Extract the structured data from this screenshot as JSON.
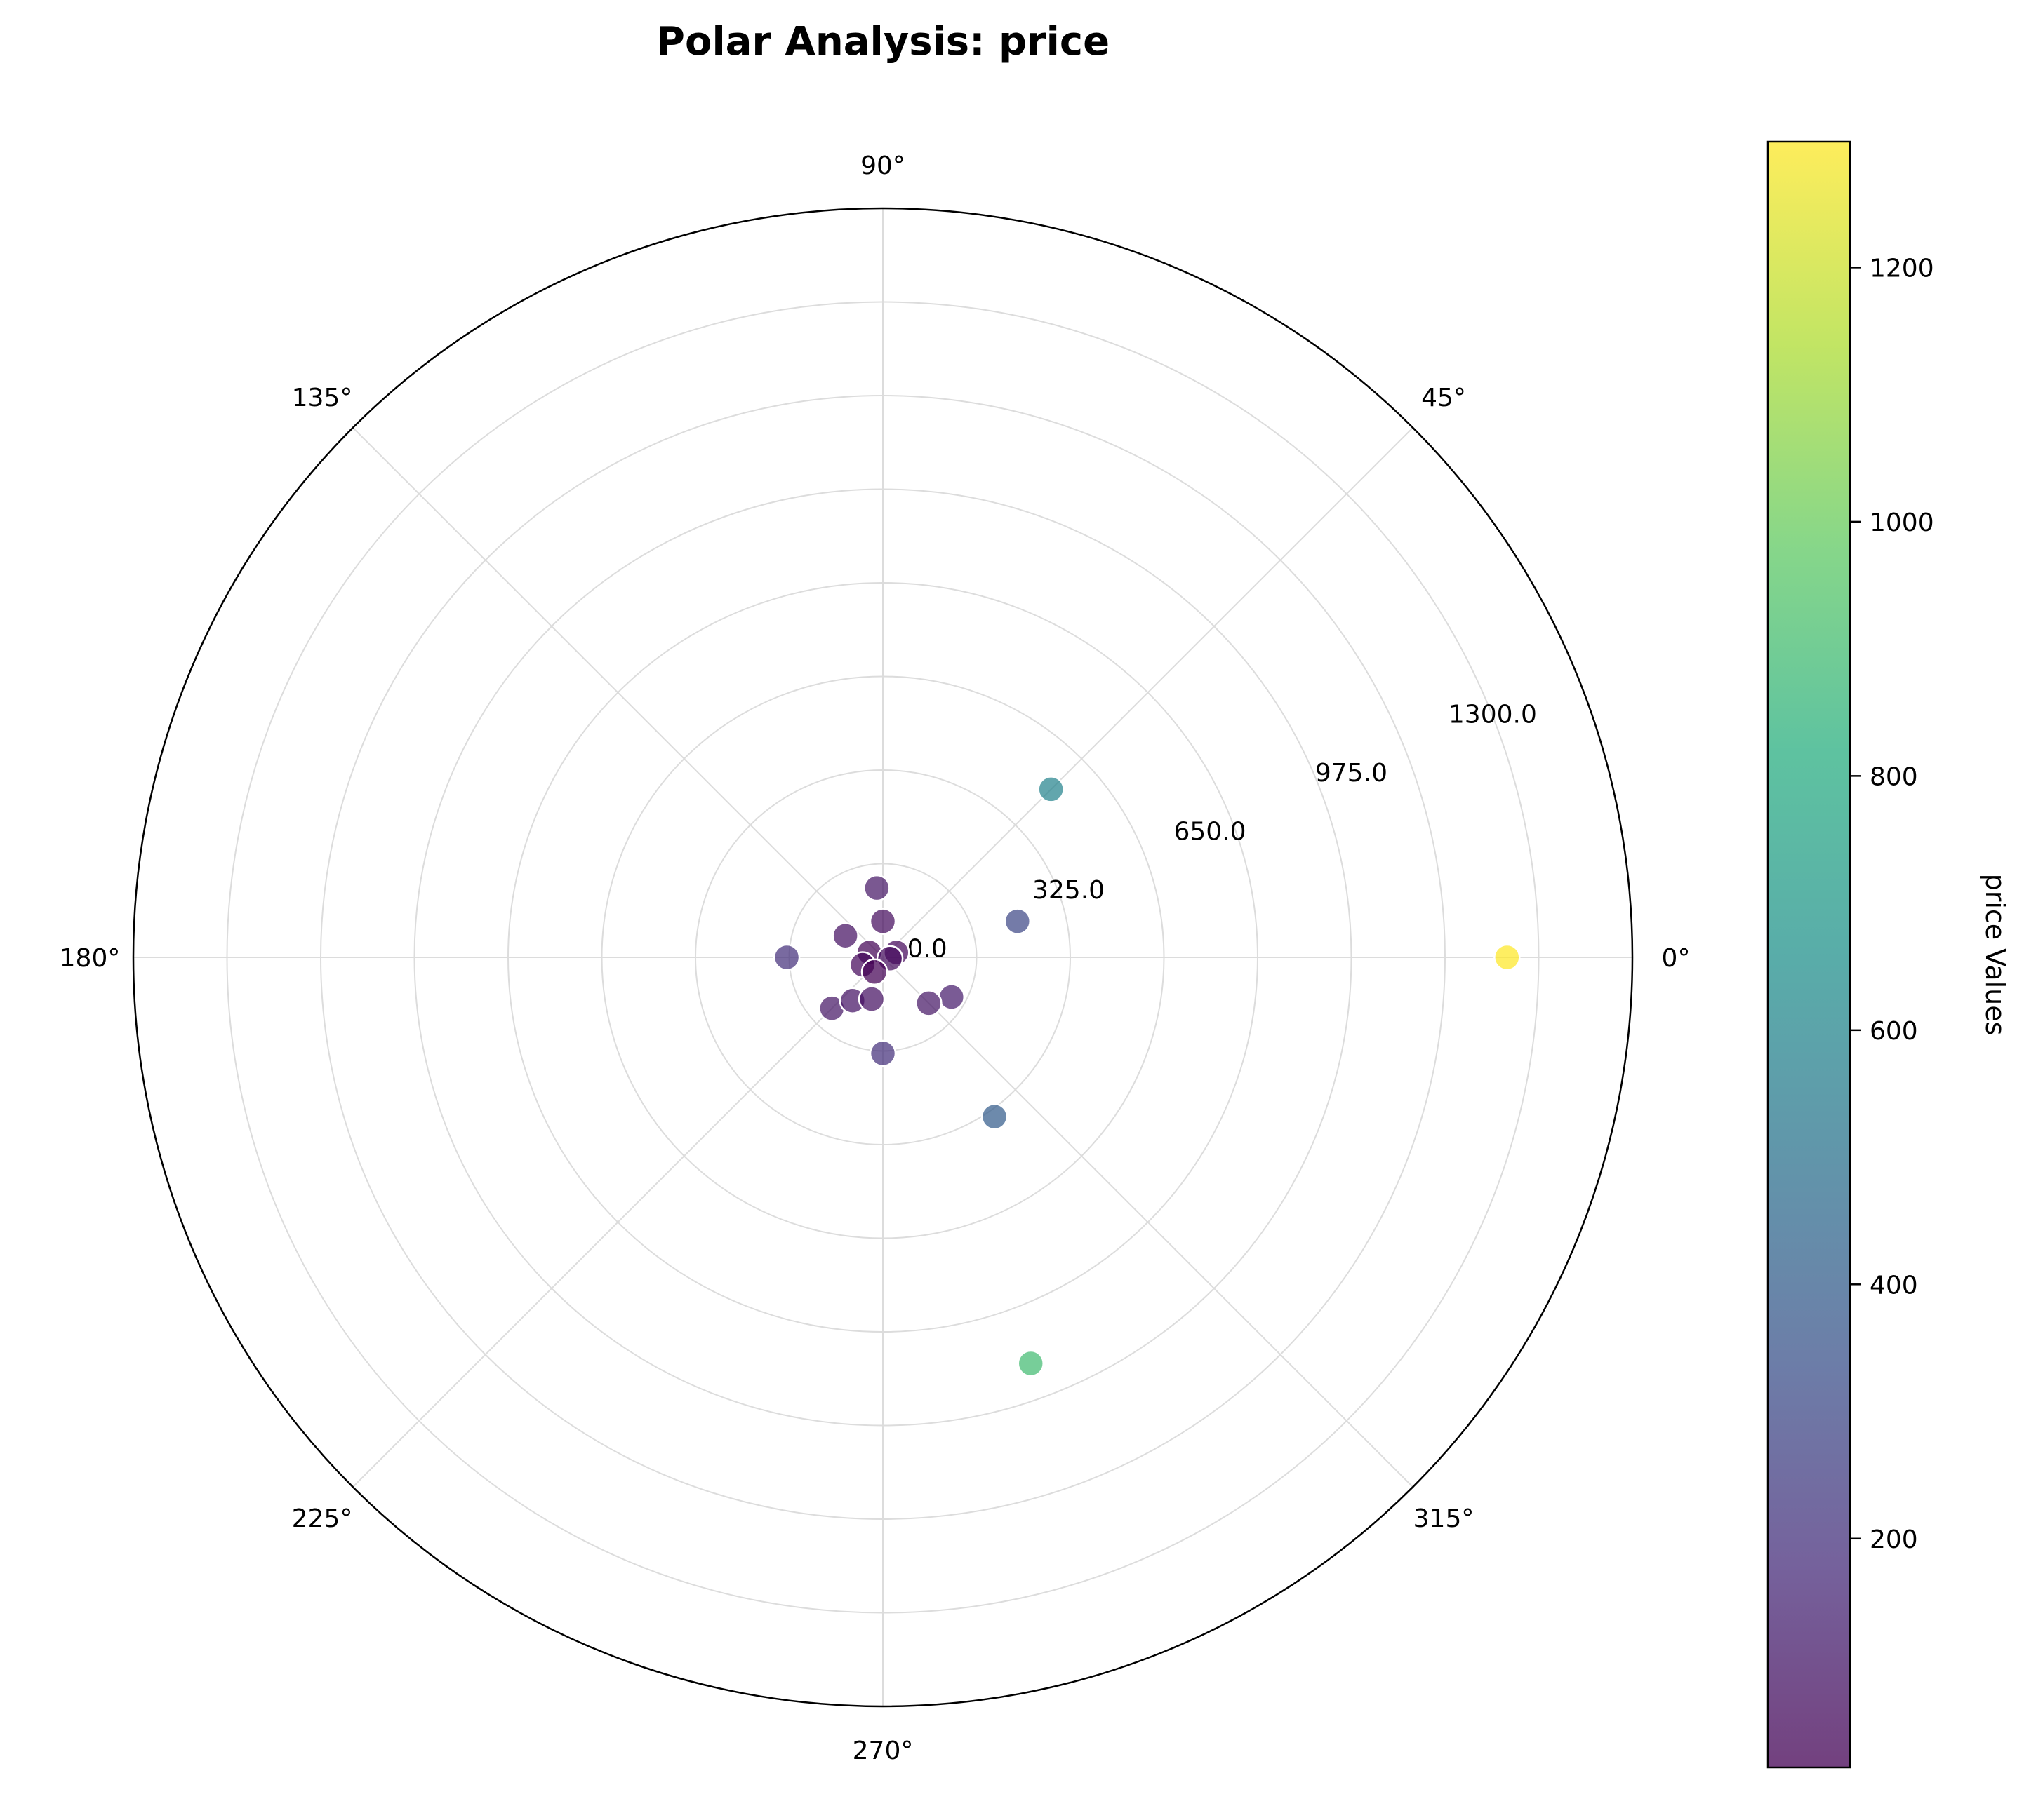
{
  "chart_data": {
    "type": "scatter",
    "subtype": "polar",
    "title": "Polar Analysis: price",
    "angular_ticks": [
      "0°",
      "45°",
      "90°",
      "135°",
      "180°",
      "225°",
      "270°",
      "315°"
    ],
    "angular_tick_degrees": [
      0,
      45,
      90,
      135,
      180,
      225,
      270,
      315
    ],
    "radial_ticks": [
      "0.0",
      "325.0",
      "650.0",
      "975.0",
      "1300.0"
    ],
    "radial_tick_values": [
      0,
      325,
      650,
      975,
      1300
    ],
    "rlim": [
      0,
      1300
    ],
    "grid": true,
    "colormap": "viridis",
    "colorbar": {
      "label": "price Values",
      "range": [
        20,
        1299
      ],
      "ticks": [
        "200",
        "400",
        "600",
        "800",
        "1000",
        "1200"
      ],
      "tick_values": [
        200,
        400,
        600,
        800,
        1000,
        1200
      ]
    },
    "points": [
      {
        "theta_deg": 0,
        "r": 1299,
        "value": 1299
      },
      {
        "theta_deg": 45,
        "r": 495,
        "value": 600
      },
      {
        "theta_deg": 15,
        "r": 290,
        "value": 300
      },
      {
        "theta_deg": 290,
        "r": 900,
        "value": 900
      },
      {
        "theta_deg": 305,
        "r": 405,
        "value": 400
      },
      {
        "theta_deg": 270,
        "r": 200,
        "value": 200
      },
      {
        "theta_deg": 180,
        "r": 200,
        "value": 200
      },
      {
        "theta_deg": 330,
        "r": 165,
        "value": 120
      },
      {
        "theta_deg": 315,
        "r": 135,
        "value": 100
      },
      {
        "theta_deg": 95,
        "r": 145,
        "value": 100
      },
      {
        "theta_deg": 90,
        "r": 75,
        "value": 60
      },
      {
        "theta_deg": 150,
        "r": 90,
        "value": 80
      },
      {
        "theta_deg": 225,
        "r": 150,
        "value": 100
      },
      {
        "theta_deg": 235,
        "r": 110,
        "value": 90
      },
      {
        "theta_deg": 255,
        "r": 90,
        "value": 80
      },
      {
        "theta_deg": 160,
        "r": 30,
        "value": 30
      },
      {
        "theta_deg": 20,
        "r": 30,
        "value": 50
      },
      {
        "theta_deg": 350,
        "r": 15,
        "value": 60
      },
      {
        "theta_deg": 200,
        "r": 45,
        "value": 50
      },
      {
        "theta_deg": 240,
        "r": 35,
        "value": 20
      }
    ]
  }
}
